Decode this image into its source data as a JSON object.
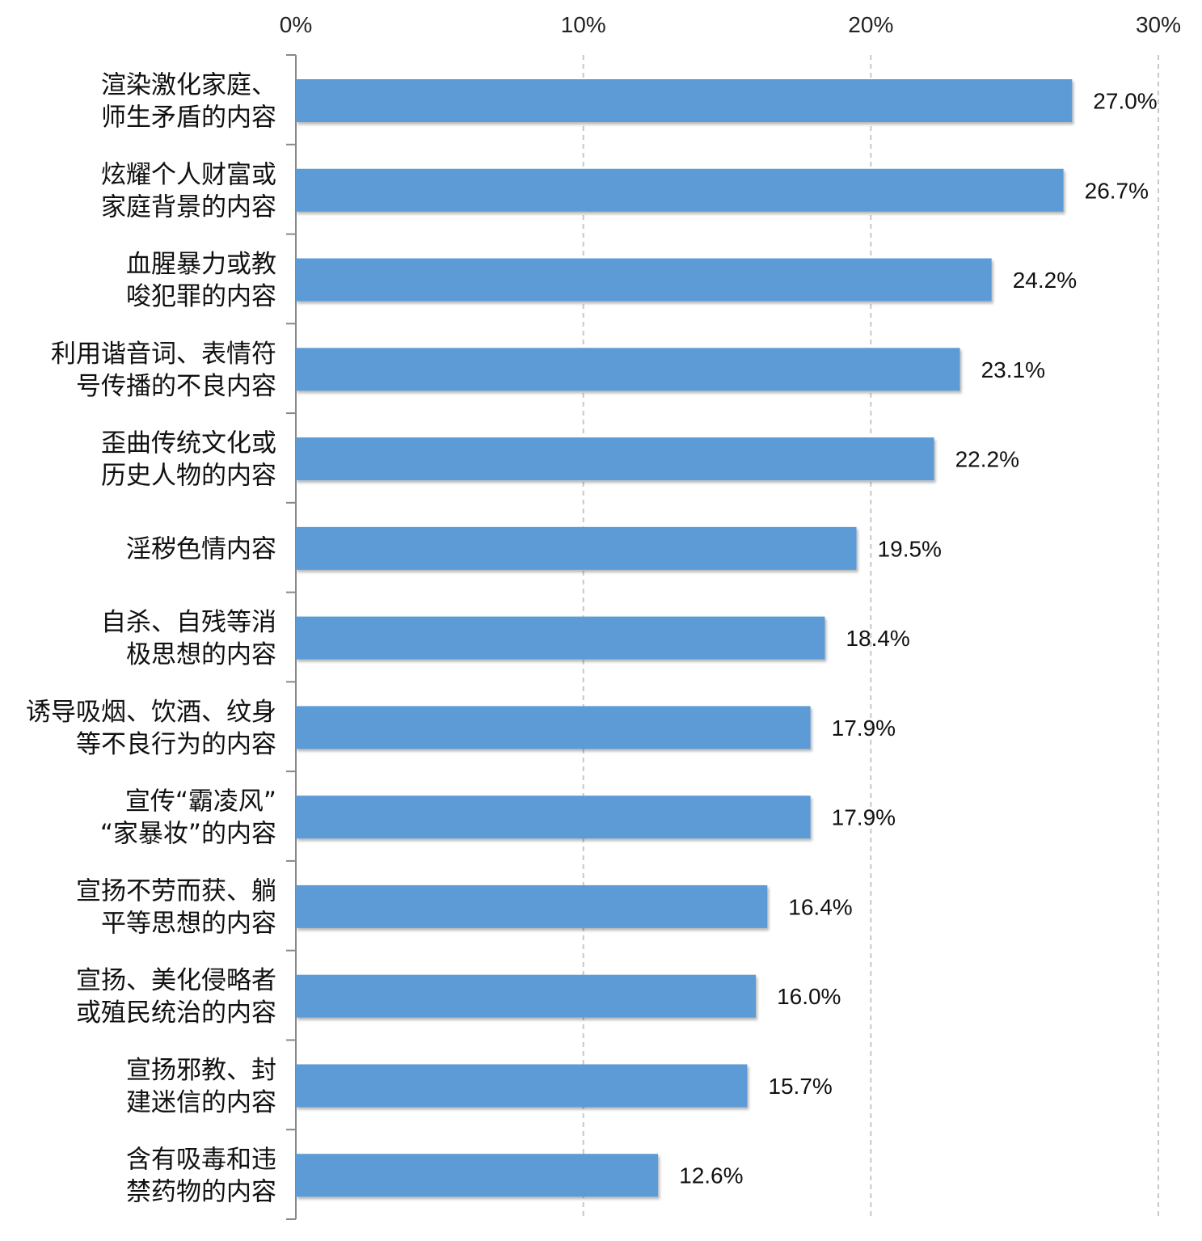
{
  "chart_data": {
    "type": "bar",
    "orientation": "horizontal",
    "categories": [
      [
        "渲染激化家庭、",
        "师生矛盾的内容"
      ],
      [
        "炫耀个人财富或",
        "家庭背景的内容"
      ],
      [
        "血腥暴力或教",
        "唆犯罪的内容"
      ],
      [
        "利用谐音词、表情符",
        "号传播的不良内容"
      ],
      [
        "歪曲传统文化或",
        "历史人物的内容"
      ],
      [
        "淫秽色情内容"
      ],
      [
        "自杀、自残等消",
        "极思想的内容"
      ],
      [
        "诱导吸烟、饮酒、纹身",
        "等不良行为的内容"
      ],
      [
        "宣传“霸凌风”",
        "“家暴妆”的内容"
      ],
      [
        "宣扬不劳而获、躺",
        "平等思想的内容"
      ],
      [
        "宣扬、美化侵略者",
        "或殖民统治的内容"
      ],
      [
        "宣扬邪教、封",
        "建迷信的内容"
      ],
      [
        "含有吸毒和违",
        "禁药物的内容"
      ]
    ],
    "values": [
      27.0,
      26.7,
      24.2,
      23.1,
      22.2,
      19.5,
      18.4,
      17.9,
      17.9,
      16.4,
      16.0,
      15.7,
      12.6
    ],
    "value_labels": [
      "27.0%",
      "26.7%",
      "24.2%",
      "23.1%",
      "22.2%",
      "19.5%",
      "18.4%",
      "17.9%",
      "17.9%",
      "16.4%",
      "16.0%",
      "15.7%",
      "12.6%"
    ],
    "x_ticks": [
      0,
      10,
      20,
      30
    ],
    "x_tick_labels": [
      "0%",
      "10%",
      "20%",
      "30%"
    ],
    "xlim": [
      0,
      30
    ],
    "x_axis_position": "top",
    "grid": "vertical dashed",
    "legend": "none",
    "bar_color": "#5b9bd5",
    "grid_color": "#c8c8c8",
    "axis_color": "#888888"
  }
}
